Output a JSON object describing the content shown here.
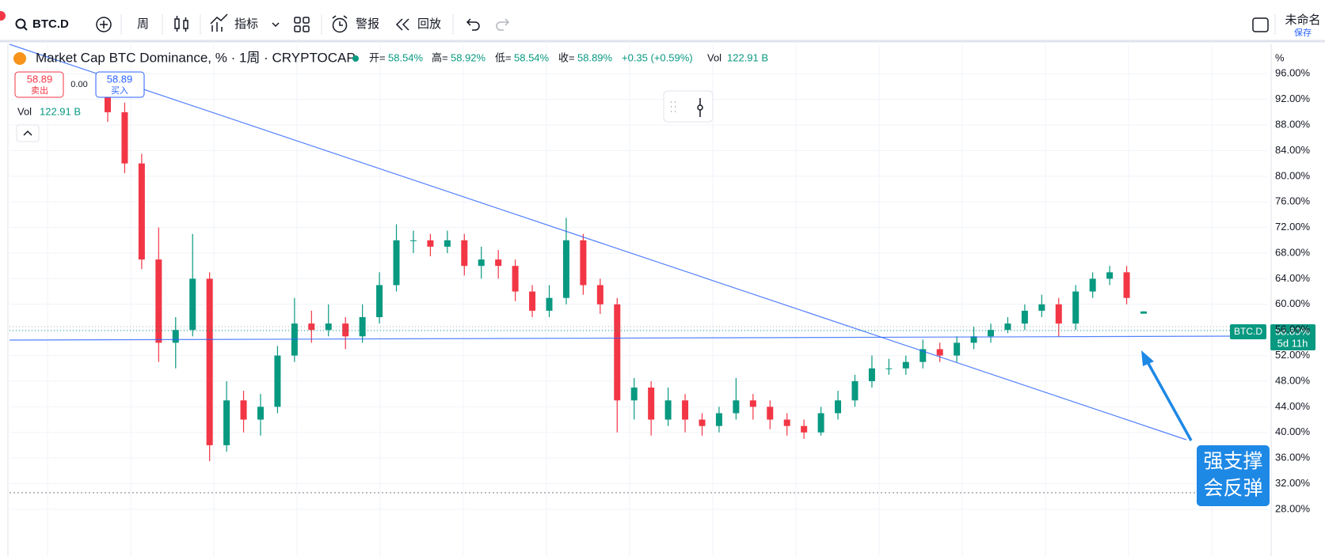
{
  "toolbar": {
    "symbol": "BTC.D",
    "interval": "周",
    "indicators": "指标",
    "alert": "警报",
    "replay": "回放",
    "layout_name": "未命名",
    "save": "保存"
  },
  "legend": {
    "title": "Market Cap BTC Dominance, % · 1周 · CRYPTOCAP",
    "open_label": "开=",
    "open": "58.54%",
    "high_label": "高=",
    "high": "58.92%",
    "low_label": "低=",
    "low": "58.54%",
    "close_label": "收=",
    "close": "58.89%",
    "change": "+0.35 (+0.59%)",
    "vol_label": "Vol",
    "vol": "122.91 B"
  },
  "trade": {
    "sell_price": "58.89",
    "sell": "卖出",
    "spread": "0.00",
    "buy_price": "58.89",
    "buy": "买入"
  },
  "volume": {
    "label": "Vol",
    "value": "122.91 B"
  },
  "price_tag": {
    "symbol": "BTC.D",
    "price": "58.89%",
    "countdown": "5d 11h"
  },
  "annotation": {
    "line1": "强支撑",
    "line2": "会反弹"
  },
  "chart_data": {
    "type": "candlestick",
    "axis_unit": "%",
    "up_color": "#089981",
    "down_color": "#f23645",
    "open": [
      93,
      90,
      82,
      67,
      54,
      56,
      64,
      38,
      45,
      42,
      44,
      52,
      57,
      56,
      57,
      55,
      58,
      63,
      70,
      70,
      69,
      70,
      66,
      67,
      66,
      62,
      59,
      61,
      70,
      63,
      60,
      45,
      47,
      42,
      45,
      42,
      41,
      43,
      45,
      44,
      42,
      41,
      40,
      43,
      45,
      48,
      50,
      50,
      51,
      53,
      52,
      54,
      55,
      56,
      57,
      59,
      60,
      57,
      62,
      64,
      65,
      58.54
    ],
    "high": [
      94.5,
      91.5,
      83.5,
      72,
      58,
      71,
      65,
      48,
      46.5,
      46,
      53.5,
      61,
      59,
      60,
      58,
      60,
      65,
      72.5,
      71.5,
      71,
      71.5,
      71,
      69,
      68.5,
      67,
      63,
      63,
      73.5,
      71,
      64,
      61,
      48.5,
      48,
      47,
      46,
      43,
      44,
      48.5,
      46,
      45,
      43,
      42,
      44,
      46.5,
      49,
      52,
      51.5,
      52,
      54.5,
      54,
      55,
      56.5,
      57,
      58,
      60,
      61.5,
      61,
      63,
      65,
      66,
      66,
      58.92
    ],
    "low": [
      88.5,
      80.5,
      65.5,
      51,
      50,
      55,
      35.5,
      37,
      40,
      39.5,
      43,
      51,
      54,
      55,
      53,
      54,
      57,
      62,
      68,
      67.5,
      68,
      64.5,
      64,
      64,
      60.5,
      58,
      58,
      60,
      61.5,
      58.5,
      40,
      42,
      39.5,
      41,
      40,
      39.5,
      40,
      42,
      42,
      40.5,
      39.5,
      39,
      39.5,
      42,
      44,
      47,
      49,
      49,
      50,
      51,
      51,
      53,
      54,
      55.5,
      56,
      58,
      55,
      56,
      61,
      63,
      60,
      58.54
    ],
    "close": [
      90,
      82,
      67,
      54,
      56,
      64,
      38,
      45,
      42,
      44,
      52,
      57,
      56,
      57,
      55,
      58,
      63,
      70,
      70,
      69,
      70,
      66,
      67,
      66,
      62,
      59,
      61,
      70,
      63,
      60,
      45,
      47,
      42,
      45,
      42,
      41,
      43,
      45,
      44,
      42,
      41,
      40,
      43,
      45,
      48,
      50,
      50,
      51,
      53,
      52,
      54,
      55,
      56,
      57,
      59,
      60,
      57,
      62,
      64,
      65,
      61,
      58.89
    ],
    "ylim": [
      20.7,
      101.1
    ],
    "yticks": [
      {
        "value": 28,
        "label": "28.00%"
      },
      {
        "value": 32,
        "label": "32.00%"
      },
      {
        "value": 36,
        "label": "36.00%"
      },
      {
        "value": 40,
        "label": "40.00%"
      },
      {
        "value": 44,
        "label": "44.00%"
      },
      {
        "value": 48,
        "label": "48.00%"
      },
      {
        "value": 52,
        "label": "52.00%"
      },
      {
        "value": 56,
        "label": "56.00%"
      },
      {
        "value": 60,
        "label": "60.00%"
      },
      {
        "value": 64,
        "label": "64.00%"
      },
      {
        "value": 68,
        "label": "68.00%"
      },
      {
        "value": 72,
        "label": "72.00%"
      },
      {
        "value": 76,
        "label": "76.00%"
      },
      {
        "value": 80,
        "label": "80.00%"
      },
      {
        "value": 84,
        "label": "84.00%"
      },
      {
        "value": 88,
        "label": "88.00%"
      },
      {
        "value": 92,
        "label": "92.00%"
      },
      {
        "value": 96,
        "label": "96.00%"
      }
    ],
    "grid": true
  }
}
